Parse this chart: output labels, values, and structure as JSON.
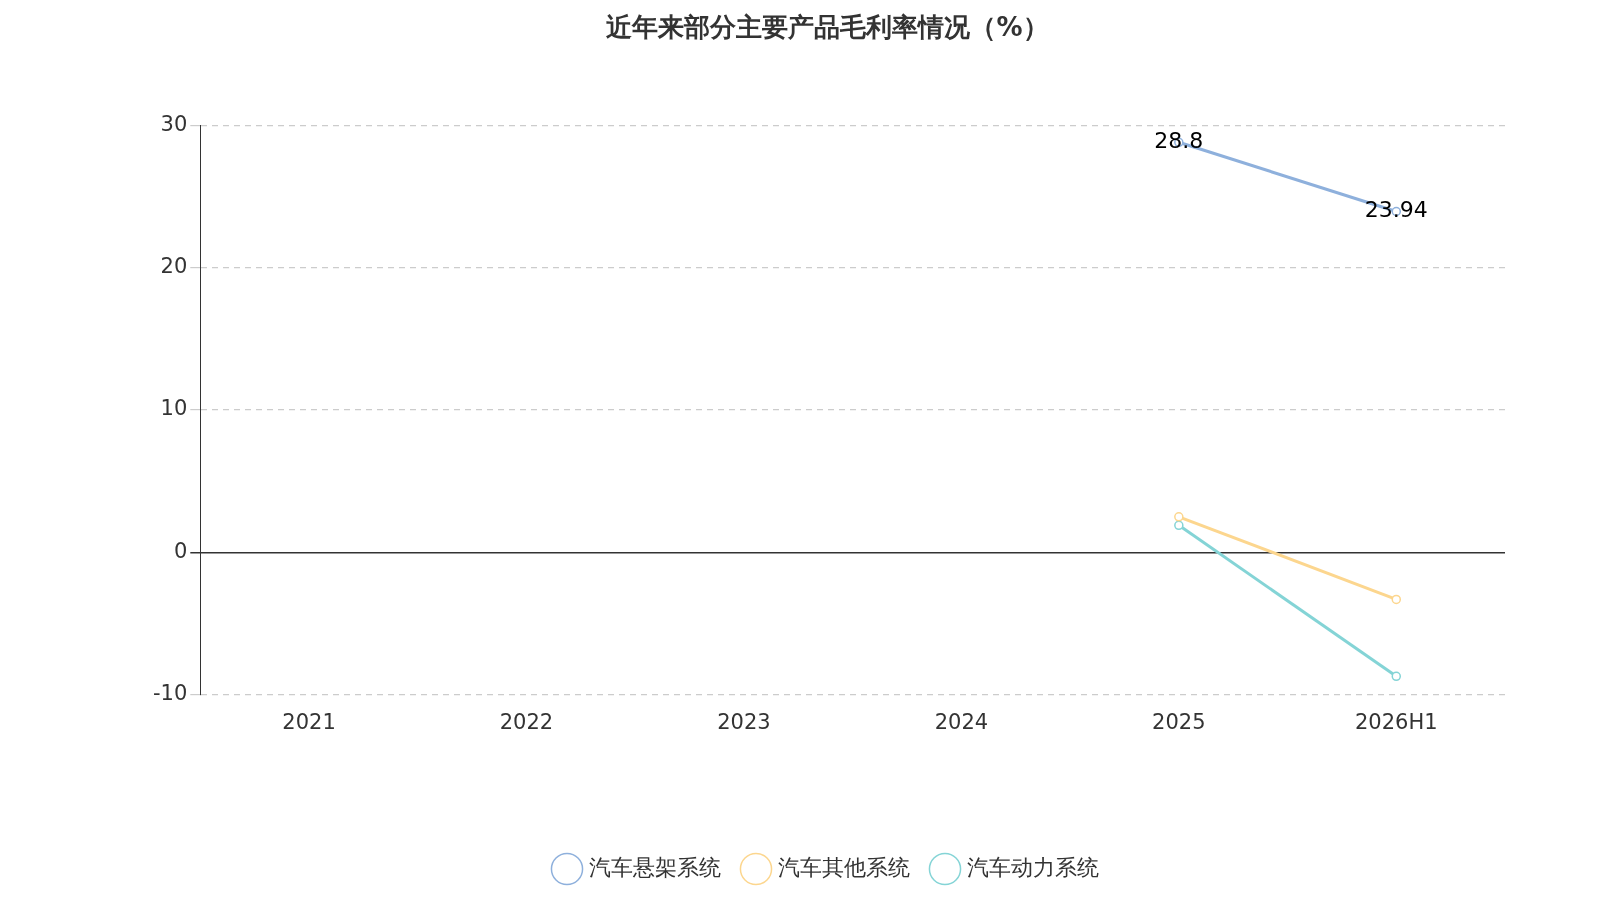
{
  "chart_data": {
    "type": "line",
    "title": "近年来部分主要产品毛利率情况（%）",
    "categories": [
      "2021",
      "2022",
      "2023",
      "2024",
      "2025",
      "2026H1"
    ],
    "series": [
      {
        "name": "汽车悬架系统",
        "color": "#8eb0dc",
        "values": [
          null,
          null,
          null,
          null,
          28.8,
          23.94
        ],
        "value_labels": [
          null,
          null,
          null,
          null,
          "28.8",
          "23.94"
        ]
      },
      {
        "name": "汽车其他系统",
        "color": "#fcd68e",
        "values": [
          null,
          null,
          null,
          null,
          2.5,
          -3.3
        ]
      },
      {
        "name": "汽车动力系统",
        "color": "#84d4d6",
        "values": [
          null,
          null,
          null,
          null,
          1.9,
          -8.7
        ]
      }
    ],
    "ylim": [
      -10,
      30
    ],
    "yticks": [
      -10,
      0,
      10,
      20,
      30
    ],
    "grid": "y",
    "legend": "bottom",
    "marker": "circle",
    "line_style": "solid"
  }
}
